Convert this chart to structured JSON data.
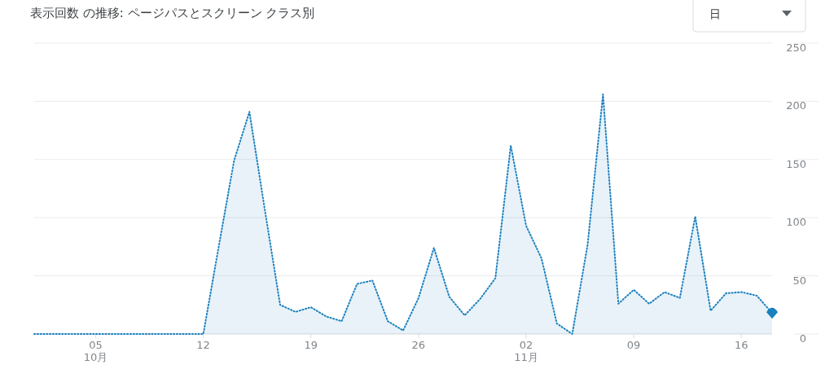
{
  "chart_data": {
    "type": "area",
    "title": "表示回数 の推移: ページパスとスクリーン クラス別",
    "annotations": [
      "日"
    ],
    "x": [
      "--10-01",
      "--10-02",
      "--10-03",
      "--10-04",
      "--10-05",
      "--10-06",
      "--10-07",
      "--10-08",
      "--10-09",
      "--10-10",
      "--10-11",
      "--10-12",
      "--10-13",
      "--10-14",
      "--10-15",
      "--10-16",
      "--10-17",
      "--10-18",
      "--10-19",
      "--10-20",
      "--10-21",
      "--10-22",
      "--10-23",
      "--10-24",
      "--10-25",
      "--10-26",
      "--10-27",
      "--10-28",
      "--10-29",
      "--10-30",
      "--10-31",
      "--11-01",
      "--11-02",
      "--11-03",
      "--11-04",
      "--11-05",
      "--11-06",
      "--11-07",
      "--11-08",
      "--11-09",
      "--11-10",
      "--11-11",
      "--11-12",
      "--11-13",
      "--11-14",
      "--11-15",
      "--11-16",
      "--11-17",
      "--11-18"
    ],
    "series": [
      {
        "color": "#1a80bf",
        "values": [
          0,
          0,
          0,
          0,
          0,
          0,
          0,
          0,
          0,
          0,
          0,
          0,
          75,
          149,
          191,
          107,
          25,
          19,
          23,
          15,
          11,
          43,
          46,
          11,
          3,
          31,
          74,
          32,
          16,
          30,
          48,
          162,
          93,
          65,
          9,
          0,
          77,
          206,
          26,
          38,
          26,
          36,
          31,
          101,
          20,
          35,
          36,
          33,
          18
        ]
      }
    ],
    "xticks": [
      {
        "value": "--10-05",
        "label": "05\n10月"
      },
      {
        "value": "--10-12",
        "label": "12"
      },
      {
        "value": "--10-19",
        "label": "19"
      },
      {
        "value": "--10-26",
        "label": "26"
      },
      {
        "value": "--11-02",
        "label": "02\n11月"
      },
      {
        "value": "--11-09",
        "label": "09"
      },
      {
        "value": "--11-16",
        "label": "16"
      }
    ],
    "xlim": [
      "--10-01",
      "--11-18"
    ],
    "ylim": [
      0,
      250
    ],
    "yticks": [
      0,
      50,
      100,
      150,
      200,
      250
    ],
    "grid": "y",
    "line_style": "dotted"
  }
}
